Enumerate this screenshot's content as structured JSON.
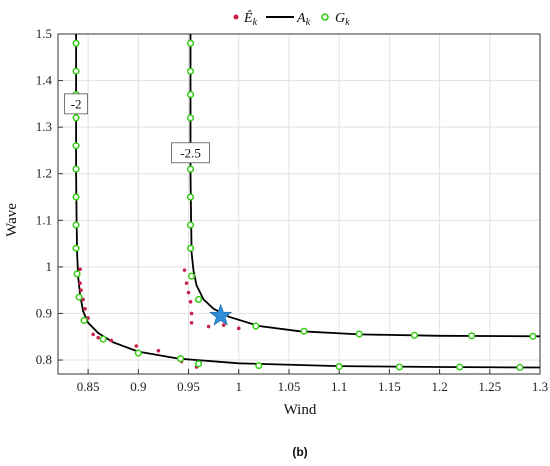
{
  "caption": "(b)",
  "colors": {
    "estimate": "#c8234a",
    "curve": "#000000",
    "grid_pt": "#33cc11",
    "star": "#2f8fd8"
  },
  "chart_data": {
    "type": "scatter",
    "xlabel": "Wind",
    "ylabel": "Wave",
    "xlim": [
      0.82,
      1.3
    ],
    "ylim": [
      0.77,
      1.5
    ],
    "x_ticks": [
      0.85,
      0.9,
      0.95,
      1.0,
      1.05,
      1.1,
      1.15,
      1.2,
      1.25,
      1.3
    ],
    "x_tick_labels": [
      "0.85",
      "0.9",
      "0.95",
      "1",
      "1.05",
      "1.1",
      "1.15",
      "1.2",
      "1.25",
      "1.3"
    ],
    "y_ticks": [
      0.8,
      0.9,
      1.0,
      1.1,
      1.2,
      1.3,
      1.4,
      1.5
    ],
    "y_tick_labels": [
      "0.8",
      "0.9",
      "1",
      "1.1",
      "1.2",
      "1.3",
      "1.4",
      "1.5"
    ],
    "grid": true,
    "legend": {
      "placement": "top-center",
      "entries": [
        {
          "label": "Ê_k",
          "marker": "dot"
        },
        {
          "label": "A_k",
          "marker": "line"
        },
        {
          "label": "G_k",
          "marker": "circle"
        }
      ]
    },
    "contours": [
      {
        "label": "-2",
        "label_at": [
          0.838,
          1.35
        ],
        "curve": [
          [
            0.838,
            1.5
          ],
          [
            0.838,
            1.4
          ],
          [
            0.838,
            1.3
          ],
          [
            0.838,
            1.2
          ],
          [
            0.8385,
            1.1
          ],
          [
            0.839,
            1.03
          ],
          [
            0.84,
            0.98
          ],
          [
            0.842,
            0.94
          ],
          [
            0.845,
            0.905
          ],
          [
            0.85,
            0.88
          ],
          [
            0.86,
            0.858
          ],
          [
            0.875,
            0.838
          ],
          [
            0.9,
            0.818
          ],
          [
            0.94,
            0.803
          ],
          [
            1.0,
            0.793
          ],
          [
            1.1,
            0.787
          ],
          [
            1.2,
            0.785
          ],
          [
            1.3,
            0.784
          ]
        ],
        "grid_points": [
          [
            0.838,
            1.48
          ],
          [
            0.838,
            1.42
          ],
          [
            0.838,
            1.37
          ],
          [
            0.838,
            1.32
          ],
          [
            0.838,
            1.26
          ],
          [
            0.838,
            1.21
          ],
          [
            0.838,
            1.15
          ],
          [
            0.838,
            1.09
          ],
          [
            0.838,
            1.04
          ],
          [
            0.839,
            0.985
          ],
          [
            0.841,
            0.935
          ],
          [
            0.846,
            0.885
          ],
          [
            0.865,
            0.845
          ],
          [
            0.9,
            0.815
          ],
          [
            0.942,
            0.803
          ],
          [
            0.96,
            0.792
          ],
          [
            1.02,
            0.788
          ],
          [
            1.1,
            0.786
          ],
          [
            1.16,
            0.785
          ],
          [
            1.22,
            0.785
          ],
          [
            1.28,
            0.784
          ]
        ]
      },
      {
        "label": "-2.5",
        "label_at": [
          0.952,
          1.245
        ],
        "curve": [
          [
            0.952,
            1.5
          ],
          [
            0.952,
            1.4
          ],
          [
            0.952,
            1.3
          ],
          [
            0.952,
            1.2
          ],
          [
            0.9525,
            1.1
          ],
          [
            0.953,
            1.03
          ],
          [
            0.955,
            0.99
          ],
          [
            0.958,
            0.96
          ],
          [
            0.965,
            0.93
          ],
          [
            0.975,
            0.91
          ],
          [
            0.99,
            0.893
          ],
          [
            1.02,
            0.873
          ],
          [
            1.06,
            0.862
          ],
          [
            1.12,
            0.855
          ],
          [
            1.2,
            0.852
          ],
          [
            1.3,
            0.851
          ]
        ],
        "grid_points": [
          [
            0.952,
            1.48
          ],
          [
            0.952,
            1.42
          ],
          [
            0.952,
            1.37
          ],
          [
            0.952,
            1.32
          ],
          [
            0.952,
            1.26
          ],
          [
            0.952,
            1.21
          ],
          [
            0.952,
            1.15
          ],
          [
            0.952,
            1.09
          ],
          [
            0.952,
            1.04
          ],
          [
            0.953,
            0.98
          ],
          [
            0.96,
            0.93
          ],
          [
            1.017,
            0.873
          ],
          [
            1.065,
            0.862
          ],
          [
            1.12,
            0.856
          ],
          [
            1.175,
            0.853
          ],
          [
            1.232,
            0.852
          ],
          [
            1.293,
            0.851
          ]
        ]
      }
    ],
    "estimates": [
      [
        0.842,
        0.995
      ],
      [
        0.842,
        0.965
      ],
      [
        0.843,
        0.95
      ],
      [
        0.845,
        0.93
      ],
      [
        0.847,
        0.91
      ],
      [
        0.85,
        0.89
      ],
      [
        0.855,
        0.855
      ],
      [
        0.86,
        0.848
      ],
      [
        0.873,
        0.842
      ],
      [
        0.898,
        0.83
      ],
      [
        0.92,
        0.82
      ],
      [
        0.943,
        0.797
      ],
      [
        0.946,
        0.993
      ],
      [
        0.948,
        0.965
      ],
      [
        0.95,
        0.945
      ],
      [
        0.952,
        0.925
      ],
      [
        0.953,
        0.9
      ],
      [
        0.953,
        0.88
      ],
      [
        0.97,
        0.872
      ],
      [
        0.985,
        0.875
      ],
      [
        1.0,
        0.868
      ],
      [
        0.958,
        0.785
      ]
    ],
    "highlight": {
      "marker": "star",
      "x": 0.982,
      "y": 0.895
    }
  }
}
